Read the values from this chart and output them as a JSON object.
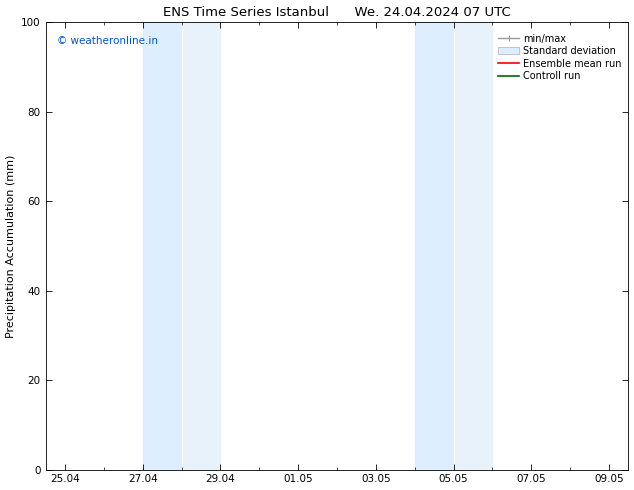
{
  "title": "ENS Time Series Istanbul      We. 24.04.2024 07 UTC",
  "ylabel": "Precipitation Accumulation (mm)",
  "ylim": [
    0,
    100
  ],
  "yticks": [
    0,
    20,
    40,
    60,
    80,
    100
  ],
  "background_color": "#ffffff",
  "plot_bg_color": "#ffffff",
  "watermark_text": "© weatheronline.in",
  "watermark_color": "#0055cc",
  "band_color": "#ddeeff",
  "xtick_labels": [
    "25.04",
    "27.04",
    "29.04",
    "01.05",
    "03.05",
    "05.05",
    "07.05",
    "09.05"
  ],
  "title_fontsize": 9.5,
  "axis_fontsize": 8,
  "tick_fontsize": 7.5,
  "watermark_fontsize": 7.5,
  "legend_fontsize": 7
}
